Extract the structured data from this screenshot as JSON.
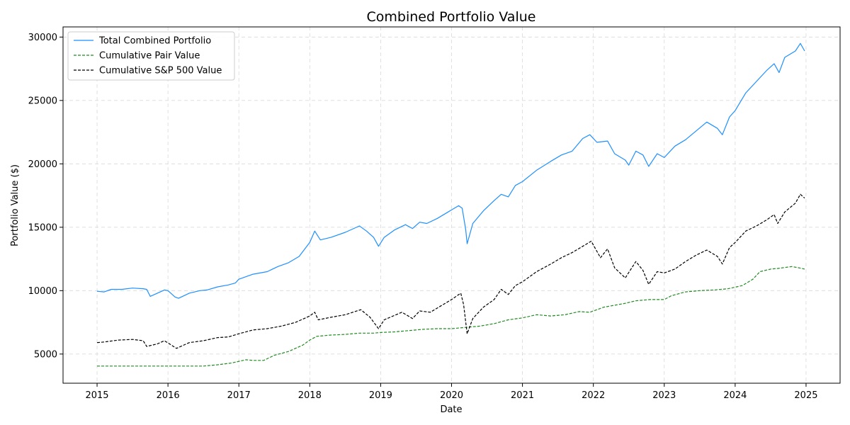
{
  "chart_data": {
    "type": "line",
    "title": "Combined Portfolio Value",
    "xlabel": "Date",
    "ylabel": "Portfolio Value ($)",
    "xlim": [
      2014.52,
      2025.48
    ],
    "ylim": [
      2700,
      30800
    ],
    "x_ticks": [
      2015,
      2016,
      2017,
      2018,
      2019,
      2020,
      2021,
      2022,
      2023,
      2024,
      2025
    ],
    "x_tick_labels": [
      "2015",
      "2016",
      "2017",
      "2018",
      "2019",
      "2020",
      "2021",
      "2022",
      "2023",
      "2024",
      "2025"
    ],
    "y_ticks": [
      5000,
      10000,
      15000,
      20000,
      25000,
      30000
    ],
    "y_tick_labels": [
      "5000",
      "10000",
      "15000",
      "20000",
      "25000",
      "30000"
    ],
    "grid": true,
    "legend_position": "upper-left",
    "series": [
      {
        "name": "Total Combined Portfolio",
        "color": "#1e90ff",
        "style": "solid",
        "points": [
          [
            2015.0,
            9950
          ],
          [
            2015.1,
            9900
          ],
          [
            2015.2,
            10100
          ],
          [
            2015.35,
            10100
          ],
          [
            2015.5,
            10200
          ],
          [
            2015.65,
            10150
          ],
          [
            2015.7,
            10100
          ],
          [
            2015.75,
            9550
          ],
          [
            2015.85,
            9800
          ],
          [
            2015.95,
            10050
          ],
          [
            2016.0,
            10000
          ],
          [
            2016.1,
            9500
          ],
          [
            2016.15,
            9400
          ],
          [
            2016.3,
            9800
          ],
          [
            2016.45,
            10000
          ],
          [
            2016.55,
            10050
          ],
          [
            2016.7,
            10300
          ],
          [
            2016.85,
            10450
          ],
          [
            2016.95,
            10600
          ],
          [
            2017.0,
            10900
          ],
          [
            2017.2,
            11300
          ],
          [
            2017.4,
            11500
          ],
          [
            2017.55,
            11900
          ],
          [
            2017.7,
            12200
          ],
          [
            2017.85,
            12700
          ],
          [
            2018.0,
            13800
          ],
          [
            2018.07,
            14700
          ],
          [
            2018.15,
            14000
          ],
          [
            2018.3,
            14200
          ],
          [
            2018.5,
            14600
          ],
          [
            2018.7,
            15100
          ],
          [
            2018.8,
            14700
          ],
          [
            2018.9,
            14200
          ],
          [
            2018.97,
            13500
          ],
          [
            2019.05,
            14200
          ],
          [
            2019.2,
            14800
          ],
          [
            2019.35,
            15200
          ],
          [
            2019.45,
            14900
          ],
          [
            2019.55,
            15400
          ],
          [
            2019.65,
            15300
          ],
          [
            2019.8,
            15700
          ],
          [
            2019.95,
            16200
          ],
          [
            2020.1,
            16700
          ],
          [
            2020.15,
            16500
          ],
          [
            2020.2,
            14800
          ],
          [
            2020.22,
            13700
          ],
          [
            2020.3,
            15300
          ],
          [
            2020.45,
            16300
          ],
          [
            2020.6,
            17100
          ],
          [
            2020.7,
            17600
          ],
          [
            2020.8,
            17400
          ],
          [
            2020.9,
            18300
          ],
          [
            2021.0,
            18600
          ],
          [
            2021.2,
            19500
          ],
          [
            2021.4,
            20200
          ],
          [
            2021.55,
            20700
          ],
          [
            2021.7,
            21000
          ],
          [
            2021.85,
            22000
          ],
          [
            2021.95,
            22300
          ],
          [
            2022.05,
            21700
          ],
          [
            2022.2,
            21800
          ],
          [
            2022.3,
            20800
          ],
          [
            2022.45,
            20300
          ],
          [
            2022.5,
            19900
          ],
          [
            2022.6,
            21000
          ],
          [
            2022.7,
            20700
          ],
          [
            2022.78,
            19800
          ],
          [
            2022.9,
            20800
          ],
          [
            2023.0,
            20500
          ],
          [
            2023.15,
            21400
          ],
          [
            2023.3,
            21900
          ],
          [
            2023.45,
            22600
          ],
          [
            2023.6,
            23300
          ],
          [
            2023.75,
            22800
          ],
          [
            2023.82,
            22300
          ],
          [
            2023.92,
            23700
          ],
          [
            2024.0,
            24200
          ],
          [
            2024.15,
            25600
          ],
          [
            2024.3,
            26500
          ],
          [
            2024.45,
            27400
          ],
          [
            2024.55,
            27900
          ],
          [
            2024.62,
            27200
          ],
          [
            2024.7,
            28400
          ],
          [
            2024.85,
            28900
          ],
          [
            2024.92,
            29500
          ],
          [
            2024.98,
            28900
          ]
        ]
      },
      {
        "name": "Cumulative Pair Value",
        "color": "#228b22",
        "style": "dashed",
        "points": [
          [
            2015.0,
            4050
          ],
          [
            2016.0,
            4050
          ],
          [
            2016.5,
            4050
          ],
          [
            2016.7,
            4150
          ],
          [
            2016.9,
            4300
          ],
          [
            2017.1,
            4550
          ],
          [
            2017.2,
            4500
          ],
          [
            2017.35,
            4500
          ],
          [
            2017.5,
            4900
          ],
          [
            2017.7,
            5200
          ],
          [
            2017.9,
            5700
          ],
          [
            2018.0,
            6100
          ],
          [
            2018.1,
            6400
          ],
          [
            2018.3,
            6500
          ],
          [
            2018.5,
            6550
          ],
          [
            2018.7,
            6650
          ],
          [
            2018.9,
            6650
          ],
          [
            2019.0,
            6700
          ],
          [
            2019.2,
            6750
          ],
          [
            2019.4,
            6850
          ],
          [
            2019.6,
            6950
          ],
          [
            2019.8,
            7000
          ],
          [
            2020.0,
            7000
          ],
          [
            2020.2,
            7100
          ],
          [
            2020.4,
            7200
          ],
          [
            2020.6,
            7400
          ],
          [
            2020.8,
            7700
          ],
          [
            2021.0,
            7850
          ],
          [
            2021.2,
            8100
          ],
          [
            2021.4,
            8000
          ],
          [
            2021.6,
            8100
          ],
          [
            2021.8,
            8350
          ],
          [
            2021.95,
            8300
          ],
          [
            2022.15,
            8700
          ],
          [
            2022.3,
            8850
          ],
          [
            2022.45,
            9000
          ],
          [
            2022.6,
            9200
          ],
          [
            2022.8,
            9300
          ],
          [
            2023.0,
            9300
          ],
          [
            2023.1,
            9600
          ],
          [
            2023.3,
            9900
          ],
          [
            2023.5,
            10000
          ],
          [
            2023.7,
            10050
          ],
          [
            2023.9,
            10150
          ],
          [
            2024.1,
            10400
          ],
          [
            2024.25,
            10900
          ],
          [
            2024.35,
            11500
          ],
          [
            2024.5,
            11700
          ],
          [
            2024.6,
            11750
          ],
          [
            2024.8,
            11900
          ],
          [
            2024.9,
            11800
          ],
          [
            2024.98,
            11700
          ]
        ]
      },
      {
        "name": "Cumulative S&P 500 Value",
        "color": "#000000",
        "style": "dashed",
        "points": [
          [
            2015.0,
            5900
          ],
          [
            2015.1,
            5950
          ],
          [
            2015.3,
            6100
          ],
          [
            2015.5,
            6150
          ],
          [
            2015.65,
            6050
          ],
          [
            2015.7,
            5600
          ],
          [
            2015.85,
            5800
          ],
          [
            2015.95,
            6050
          ],
          [
            2016.05,
            5700
          ],
          [
            2016.12,
            5450
          ],
          [
            2016.3,
            5900
          ],
          [
            2016.5,
            6050
          ],
          [
            2016.7,
            6300
          ],
          [
            2016.85,
            6350
          ],
          [
            2017.0,
            6600
          ],
          [
            2017.2,
            6900
          ],
          [
            2017.4,
            7000
          ],
          [
            2017.6,
            7200
          ],
          [
            2017.8,
            7500
          ],
          [
            2018.0,
            8000
          ],
          [
            2018.07,
            8300
          ],
          [
            2018.12,
            7700
          ],
          [
            2018.3,
            7900
          ],
          [
            2018.5,
            8100
          ],
          [
            2018.72,
            8500
          ],
          [
            2018.85,
            7900
          ],
          [
            2018.97,
            7000
          ],
          [
            2019.05,
            7700
          ],
          [
            2019.3,
            8300
          ],
          [
            2019.45,
            7800
          ],
          [
            2019.55,
            8400
          ],
          [
            2019.7,
            8300
          ],
          [
            2019.85,
            8800
          ],
          [
            2020.0,
            9300
          ],
          [
            2020.13,
            9800
          ],
          [
            2020.17,
            8900
          ],
          [
            2020.22,
            6600
          ],
          [
            2020.3,
            7800
          ],
          [
            2020.45,
            8700
          ],
          [
            2020.6,
            9300
          ],
          [
            2020.7,
            10100
          ],
          [
            2020.8,
            9700
          ],
          [
            2020.9,
            10400
          ],
          [
            2021.0,
            10700
          ],
          [
            2021.2,
            11500
          ],
          [
            2021.4,
            12100
          ],
          [
            2021.55,
            12600
          ],
          [
            2021.7,
            13000
          ],
          [
            2021.85,
            13500
          ],
          [
            2021.97,
            13900
          ],
          [
            2022.1,
            12600
          ],
          [
            2022.2,
            13300
          ],
          [
            2022.3,
            11800
          ],
          [
            2022.45,
            11000
          ],
          [
            2022.6,
            12300
          ],
          [
            2022.7,
            11600
          ],
          [
            2022.78,
            10500
          ],
          [
            2022.9,
            11500
          ],
          [
            2023.0,
            11400
          ],
          [
            2023.15,
            11700
          ],
          [
            2023.3,
            12300
          ],
          [
            2023.45,
            12800
          ],
          [
            2023.6,
            13200
          ],
          [
            2023.75,
            12700
          ],
          [
            2023.82,
            12100
          ],
          [
            2023.92,
            13400
          ],
          [
            2024.0,
            13800
          ],
          [
            2024.15,
            14700
          ],
          [
            2024.3,
            15100
          ],
          [
            2024.45,
            15600
          ],
          [
            2024.55,
            16000
          ],
          [
            2024.6,
            15300
          ],
          [
            2024.7,
            16200
          ],
          [
            2024.85,
            16900
          ],
          [
            2024.92,
            17600
          ],
          [
            2024.98,
            17300
          ]
        ]
      }
    ]
  }
}
